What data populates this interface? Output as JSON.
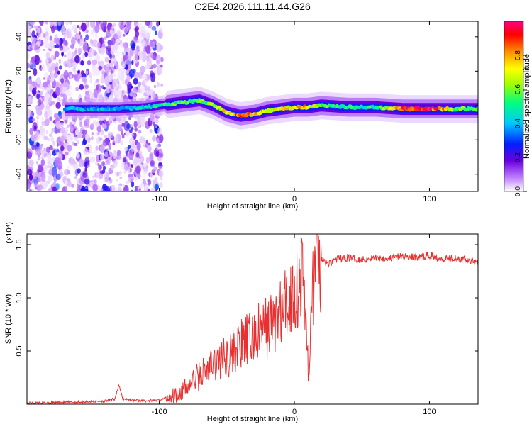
{
  "page_title": "C2E4.2026.111.11.44.G26",
  "chart_data": [
    {
      "type": "heatmap",
      "title": "C2E4.2026.111.11.44.G26",
      "xlabel": "Height of straight line (km)",
      "ylabel": "Frequency (Hz)",
      "xlim": [
        -198,
        136
      ],
      "ylim": [
        -50,
        49
      ],
      "x_ticks": [
        -100,
        0,
        100
      ],
      "x_tick_labels": [
        "-100",
        "0",
        "100"
      ],
      "y_ticks": [
        -40,
        -20,
        0,
        20,
        40
      ],
      "y_tick_labels": [
        "-40",
        "-20",
        "0",
        "20",
        "40"
      ],
      "colorbar": {
        "label": "Normalized spectral amplitude",
        "range": [
          0,
          1
        ],
        "ticks": [
          0.0,
          0.2,
          0.4,
          0.6,
          0.8
        ],
        "tick_labels": [
          "0.0",
          "0.2",
          "0.4",
          "0.6",
          "0.8"
        ],
        "colors": [
          "#ffffff",
          "#c080ff",
          "#6a00e0",
          "#0020ff",
          "#00c8ff",
          "#00ff80",
          "#a0ff00",
          "#ffff00",
          "#ff9000",
          "#ff0000",
          "#ff0080"
        ]
      },
      "ridge_line": {
        "x": [
          -170,
          -150,
          -130,
          -110,
          -100,
          -90,
          -80,
          -70,
          -60,
          -50,
          -40,
          -30,
          -20,
          -10,
          0,
          10,
          20,
          40,
          60,
          80,
          100,
          120,
          136
        ],
        "y": [
          -2,
          -2,
          -2,
          -1,
          0,
          1,
          2,
          3,
          0,
          -4,
          -6,
          -5,
          -3,
          -2,
          -1,
          -1,
          0,
          -1,
          -1,
          -2,
          -2,
          -2,
          -2
        ],
        "amplitude": [
          0.4,
          0.4,
          0.4,
          0.45,
          0.5,
          0.55,
          0.55,
          0.55,
          0.6,
          0.75,
          0.85,
          0.8,
          0.75,
          0.7,
          0.75,
          0.8,
          0.55,
          0.5,
          0.5,
          0.95,
          1.0,
          0.6,
          0.55
        ]
      },
      "noise_region_x": [
        -198,
        -98
      ]
    },
    {
      "type": "line",
      "xlabel": "Height of straight line (km)",
      "ylabel": "SNR (10 * v/v)",
      "scale_label": "(x10⁴)",
      "xlim": [
        -198,
        136
      ],
      "ylim": [
        0,
        1.6
      ],
      "x_ticks": [
        -100,
        0,
        100
      ],
      "x_tick_labels": [
        "-100",
        "0",
        "100"
      ],
      "y_ticks": [
        0.5,
        1.0,
        1.5
      ],
      "y_tick_labels": [
        "0.5",
        "1.0",
        "1.5"
      ],
      "color": "#e83030",
      "series": [
        {
          "name": "SNR",
          "x": [
            -198,
            -180,
            -160,
            -140,
            -133,
            -130,
            -127,
            -120,
            -110,
            -100,
            -90,
            -80,
            -75,
            -70,
            -65,
            -60,
            -55,
            -50,
            -45,
            -40,
            -35,
            -30,
            -25,
            -20,
            -15,
            -10,
            -5,
            0,
            3,
            6,
            8,
            10,
            11,
            12,
            13,
            15,
            20,
            25,
            30,
            40,
            50,
            60,
            70,
            80,
            90,
            100,
            110,
            120,
            130,
            136
          ],
          "y": [
            0.01,
            0.015,
            0.02,
            0.03,
            0.05,
            0.18,
            0.05,
            0.04,
            0.03,
            0.04,
            0.08,
            0.15,
            0.22,
            0.28,
            0.32,
            0.37,
            0.42,
            0.45,
            0.5,
            0.55,
            0.6,
            0.63,
            0.68,
            0.73,
            0.78,
            0.85,
            0.95,
            1.05,
            1.1,
            1.2,
            0.9,
            0.45,
            0.18,
            0.6,
            1.1,
            1.25,
            1.35,
            1.32,
            1.36,
            1.38,
            1.36,
            1.38,
            1.37,
            1.39,
            1.38,
            1.4,
            1.37,
            1.38,
            1.35,
            1.34
          ]
        }
      ]
    }
  ]
}
